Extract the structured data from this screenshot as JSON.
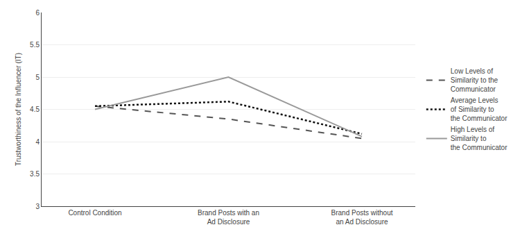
{
  "chart_data": {
    "type": "line",
    "categories": [
      "Control Condition",
      "Brand Posts with an\nAd Disclosure",
      "Brand Posts without\nan Ad Disclosure"
    ],
    "series": [
      {
        "name": "Low Levels of\nSimilarity to the\nCommunicator",
        "color": "#555555",
        "line_style": "dashed",
        "values": [
          4.55,
          4.35,
          4.05
        ]
      },
      {
        "name": "Average Levels\nof Similarity to\nthe Communicator",
        "color": "#111111",
        "line_style": "dotted",
        "values": [
          4.55,
          4.62,
          4.12
        ]
      },
      {
        "name": "High Levels of\nSimilarity to\nthe Communicator",
        "color": "#999999",
        "line_style": "solid",
        "values": [
          4.5,
          5.0,
          4.08
        ]
      }
    ],
    "ylim": [
      3,
      6
    ],
    "yticks": [
      3,
      3.5,
      4,
      4.5,
      5,
      5.5,
      6
    ],
    "ylabel": "Trustworthiness of the Influencer (IT)",
    "grid": true,
    "legend": "right"
  }
}
